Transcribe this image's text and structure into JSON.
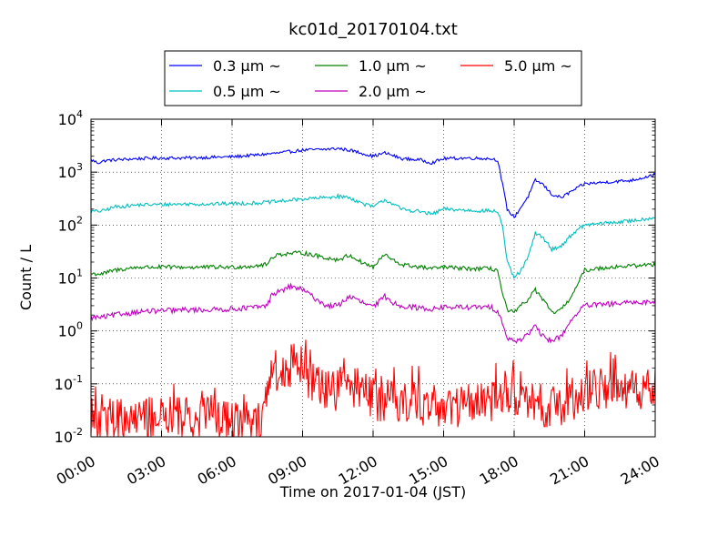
{
  "chart_data": {
    "type": "line",
    "title": "kc01d_20170104.txt",
    "xlabel": "Time on 2017-01-04 (JST)",
    "ylabel": "Count / L",
    "y_scale": "log",
    "ylim": [
      0.01,
      10000
    ],
    "xlim": [
      "00:00",
      "24:00"
    ],
    "x_ticks": [
      "00:00",
      "03:00",
      "06:00",
      "09:00",
      "12:00",
      "15:00",
      "18:00",
      "21:00",
      "24:00"
    ],
    "y_ticks": [
      {
        "base": "10",
        "exp": "-2"
      },
      {
        "base": "10",
        "exp": "-1"
      },
      {
        "base": "10",
        "exp": "0"
      },
      {
        "base": "10",
        "exp": "1"
      },
      {
        "base": "10",
        "exp": "2"
      },
      {
        "base": "10",
        "exp": "3"
      },
      {
        "base": "10",
        "exp": "4"
      }
    ],
    "grid": true,
    "legend_position": "top (outside plot)",
    "series": [
      {
        "name": "0.3 μm ~",
        "color": "#0000ff",
        "noise": 0.03,
        "kind": "line",
        "x": [
          0,
          0.3,
          0.6,
          1,
          2,
          3,
          4,
          5,
          6,
          7,
          7.5,
          8,
          9,
          10,
          10.5,
          11,
          11.5,
          12,
          12.5,
          12.8,
          13.2,
          14,
          14.5,
          15,
          16,
          17,
          17.3,
          17.5,
          17.7,
          18,
          18.3,
          18.6,
          18.9,
          19.2,
          19.6,
          20,
          20.5,
          21,
          22,
          23,
          24
        ],
        "y": [
          1700,
          1500,
          1650,
          1700,
          1800,
          1850,
          1850,
          1900,
          1950,
          2100,
          2200,
          2300,
          2600,
          2700,
          2800,
          2600,
          2300,
          2000,
          2300,
          2100,
          1800,
          1700,
          1500,
          1800,
          1850,
          1800,
          1700,
          600,
          200,
          140,
          220,
          350,
          700,
          600,
          380,
          330,
          450,
          600,
          650,
          700,
          900
        ]
      },
      {
        "name": "0.5 μm ~",
        "color": "#00bfbf",
        "noise": 0.035,
        "kind": "line",
        "x": [
          0,
          0.5,
          1,
          2,
          3,
          4,
          5,
          6,
          7,
          7.5,
          8,
          9,
          10,
          10.5,
          11,
          11.5,
          12,
          12.5,
          12.8,
          13.2,
          14,
          14.5,
          15,
          16,
          17,
          17.3,
          17.5,
          17.7,
          18,
          18.3,
          18.6,
          18.9,
          19.2,
          19.6,
          20,
          20.5,
          21,
          22,
          23,
          24
        ],
        "y": [
          180,
          185,
          220,
          240,
          245,
          250,
          250,
          255,
          260,
          270,
          280,
          310,
          330,
          350,
          330,
          260,
          220,
          300,
          260,
          200,
          180,
          160,
          200,
          190,
          185,
          180,
          100,
          20,
          10,
          14,
          25,
          70,
          60,
          35,
          40,
          70,
          100,
          110,
          120,
          140
        ]
      },
      {
        "name": "1.0 μm ~",
        "color": "#008000",
        "noise": 0.04,
        "kind": "line",
        "x": [
          0,
          0.5,
          1,
          2,
          3,
          4,
          5,
          6,
          7,
          7.5,
          7.7,
          8,
          9,
          10,
          10.5,
          11,
          11.5,
          12,
          12.5,
          12.8,
          13.2,
          14,
          14.5,
          15,
          16,
          17,
          17.3,
          17.5,
          17.7,
          18,
          18.3,
          18.6,
          18.9,
          19.2,
          19.6,
          20,
          20.5,
          21,
          22,
          23,
          24
        ],
        "y": [
          12,
          12,
          14,
          16,
          16,
          16,
          16,
          16,
          17,
          18,
          25,
          28,
          30,
          24,
          22,
          27,
          20,
          16,
          28,
          22,
          18,
          16,
          15,
          16,
          15,
          15,
          14,
          5,
          2.5,
          2.2,
          3,
          4,
          6,
          4,
          2.2,
          2.5,
          5,
          14,
          16,
          17,
          18
        ]
      },
      {
        "name": "2.0 μm ~",
        "color": "#bf00bf",
        "noise": 0.05,
        "kind": "line",
        "x": [
          0,
          0.5,
          1,
          2,
          3,
          4,
          5,
          6,
          7,
          7.5,
          7.7,
          8,
          8.5,
          9,
          10,
          10.5,
          11,
          11.5,
          12,
          12.5,
          12.8,
          13.2,
          14,
          14.5,
          15,
          16,
          17,
          17.3,
          17.5,
          17.7,
          18,
          18.3,
          18.6,
          18.9,
          19.2,
          19.6,
          20,
          20.5,
          21,
          22,
          23,
          24
        ],
        "y": [
          1.8,
          1.8,
          2.0,
          2.3,
          2.4,
          2.5,
          2.5,
          2.6,
          2.8,
          3,
          5,
          5.5,
          7,
          6,
          3,
          3,
          4.5,
          3.5,
          2.8,
          4.5,
          3.5,
          3,
          2.7,
          2.6,
          2.8,
          2.8,
          2.8,
          2.4,
          1.5,
          0.7,
          0.65,
          0.7,
          0.9,
          1.2,
          0.8,
          0.65,
          0.8,
          1.8,
          3,
          3.2,
          3.4,
          3.6
        ]
      },
      {
        "name": "5.0 μm ~",
        "color": "#ff0000",
        "noise": 0.42,
        "kind": "spiky",
        "floor": 0.01,
        "x": [
          0,
          2,
          4,
          6,
          7.4,
          7.6,
          8,
          9,
          9.5,
          10,
          11,
          12,
          13,
          14,
          15,
          16,
          17,
          17.5,
          18,
          18.5,
          19,
          20,
          21,
          22,
          23,
          24
        ],
        "y": [
          0.02,
          0.022,
          0.022,
          0.022,
          0.022,
          0.15,
          0.2,
          0.18,
          0.1,
          0.07,
          0.1,
          0.05,
          0.05,
          0.04,
          0.04,
          0.04,
          0.04,
          0.07,
          0.06,
          0.04,
          0.04,
          0.04,
          0.07,
          0.08,
          0.08,
          0.08
        ]
      }
    ]
  }
}
